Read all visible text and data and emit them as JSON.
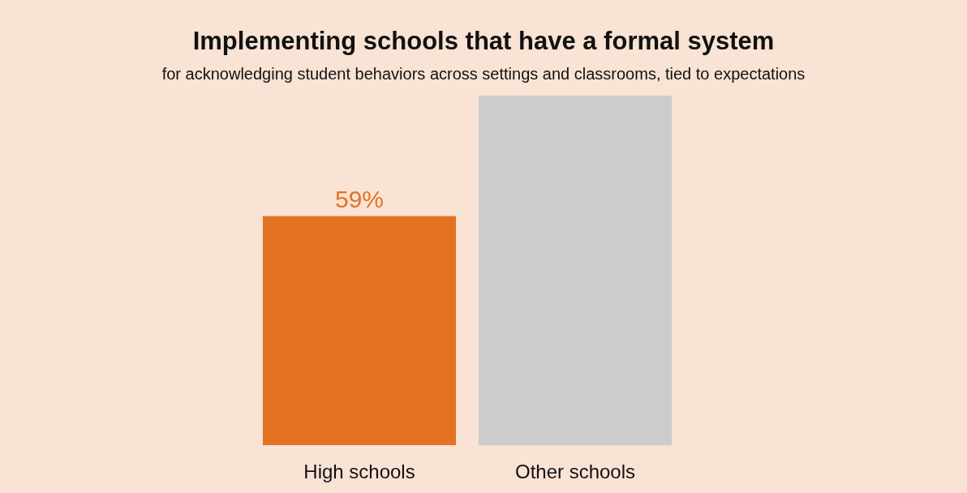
{
  "chart_data": {
    "type": "bar",
    "title": "Implementing schools that have a formal system",
    "subtitle": "for acknowledging student behaviors across settings and classrooms, tied to expectations",
    "categories": [
      "High schools",
      "Other schools"
    ],
    "values": [
      59,
      90
    ],
    "colors": [
      "#e37222",
      "#cccccc"
    ],
    "value_labels": [
      "59%",
      null
    ]
  }
}
